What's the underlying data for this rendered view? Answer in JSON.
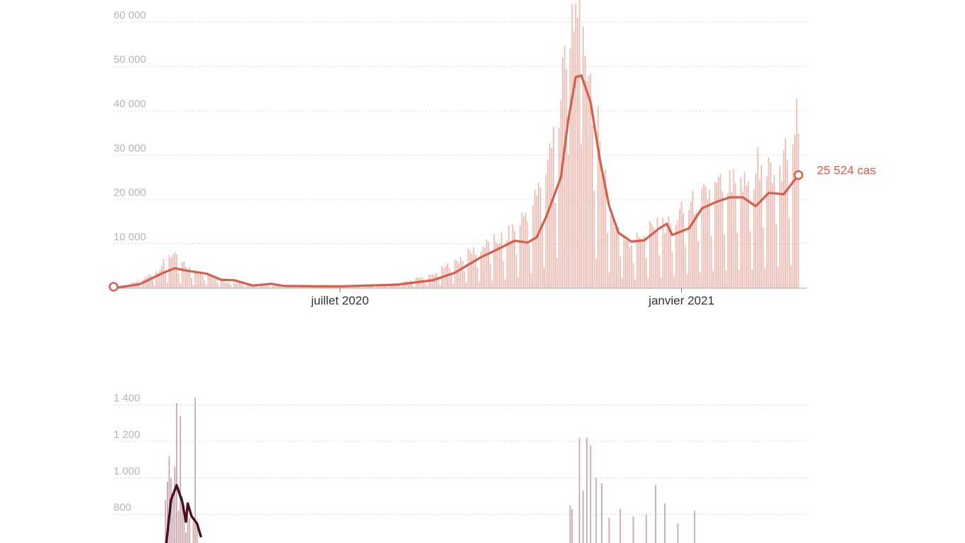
{
  "colors": {
    "cases_bar": "#efbcb3",
    "cases_line": "#d45f4c",
    "deaths_bar": "#c9a8ae",
    "deaths_line": "#4a0f1e",
    "grid": "#d7d7d7",
    "tick_text": "#b5b5b5",
    "axis": "#b8b8b8"
  },
  "chart_data": [
    {
      "type": "bar",
      "title": "",
      "xlabel": "",
      "ylabel": "",
      "start_date": "2020-03-01",
      "end_date": "2021-03-05",
      "ylim": [
        0,
        65000
      ],
      "y_ticks": [
        {
          "value": 10000,
          "label": "10 000"
        },
        {
          "value": 20000,
          "label": "20 000"
        },
        {
          "value": 30000,
          "label": "30 000"
        },
        {
          "value": 40000,
          "label": "40 000"
        },
        {
          "value": 50000,
          "label": "50 000"
        },
        {
          "value": 60000,
          "label": "60 000"
        }
      ],
      "x_ticks": [
        {
          "date": "2020-07-01",
          "label": "juillet 2020"
        },
        {
          "date": "2021-01-01",
          "label": "janvier 2021"
        }
      ],
      "grid": true,
      "daily_anchors": [
        [
          "2020-03-01",
          0
        ],
        [
          "2020-03-15",
          1500
        ],
        [
          "2020-03-25",
          4000
        ],
        [
          "2020-04-01",
          7500
        ],
        [
          "2020-04-10",
          4500
        ],
        [
          "2020-04-20",
          3000
        ],
        [
          "2020-05-01",
          1500
        ],
        [
          "2020-05-15",
          700
        ],
        [
          "2020-06-01",
          500
        ],
        [
          "2020-07-01",
          550
        ],
        [
          "2020-08-01",
          1000
        ],
        [
          "2020-08-20",
          3000
        ],
        [
          "2020-09-10",
          8000
        ],
        [
          "2020-10-01",
          12000
        ],
        [
          "2020-10-15",
          20000
        ],
        [
          "2020-10-25",
          35000
        ],
        [
          "2020-11-01",
          55000
        ],
        [
          "2020-11-07",
          62000
        ],
        [
          "2020-11-15",
          40000
        ],
        [
          "2020-11-25",
          15000
        ],
        [
          "2020-12-05",
          10000
        ],
        [
          "2020-12-15",
          13000
        ],
        [
          "2020-12-25",
          14000
        ],
        [
          "2021-01-05",
          18000
        ],
        [
          "2021-01-20",
          22000
        ],
        [
          "2021-02-05",
          23000
        ],
        [
          "2021-02-20",
          26000
        ],
        [
          "2021-03-05",
          30000
        ]
      ],
      "peaks": [
        [
          "2020-10-29",
          52000
        ],
        [
          "2020-10-31",
          49400
        ],
        [
          "2020-11-02",
          54000
        ],
        [
          "2020-11-04",
          58000
        ],
        [
          "2020-11-06",
          61000
        ],
        [
          "2020-11-07",
          86000
        ],
        [
          "2020-11-09",
          59000
        ],
        [
          "2020-11-12",
          48000
        ],
        [
          "2020-03-31",
          7500
        ],
        [
          "2021-03-04",
          42700
        ],
        [
          "2021-02-26",
          33800
        ],
        [
          "2021-02-11",
          31800
        ]
      ],
      "average_series": {
        "name": "",
        "points": [
          [
            "2020-03-01",
            0
          ],
          [
            "2020-03-15",
            900
          ],
          [
            "2020-03-28",
            3500
          ],
          [
            "2020-04-03",
            4500
          ],
          [
            "2020-04-10",
            3900
          ],
          [
            "2020-04-20",
            3300
          ],
          [
            "2020-04-28",
            1900
          ],
          [
            "2020-05-05",
            1800
          ],
          [
            "2020-05-15",
            600
          ],
          [
            "2020-05-25",
            1000
          ],
          [
            "2020-06-01",
            500
          ],
          [
            "2020-07-01",
            400
          ],
          [
            "2020-08-01",
            800
          ],
          [
            "2020-08-20",
            1800
          ],
          [
            "2020-09-01",
            3500
          ],
          [
            "2020-09-15",
            7000
          ],
          [
            "2020-09-25",
            9000
          ],
          [
            "2020-10-03",
            10700
          ],
          [
            "2020-10-10",
            10300
          ],
          [
            "2020-10-15",
            11500
          ],
          [
            "2020-10-20",
            16000
          ],
          [
            "2020-10-28",
            25000
          ],
          [
            "2020-11-01",
            38000
          ],
          [
            "2020-11-05",
            47600
          ],
          [
            "2020-11-08",
            48000
          ],
          [
            "2020-11-13",
            42000
          ],
          [
            "2020-11-18",
            29000
          ],
          [
            "2020-11-23",
            18500
          ],
          [
            "2020-11-28",
            12500
          ],
          [
            "2020-12-05",
            10500
          ],
          [
            "2020-12-12",
            10800
          ],
          [
            "2020-12-20",
            13500
          ],
          [
            "2020-12-24",
            14500
          ],
          [
            "2020-12-27",
            12000
          ],
          [
            "2021-01-05",
            13500
          ],
          [
            "2021-01-12",
            18000
          ],
          [
            "2021-01-20",
            19500
          ],
          [
            "2021-01-27",
            20500
          ],
          [
            "2021-02-03",
            20500
          ],
          [
            "2021-02-10",
            18500
          ],
          [
            "2021-02-17",
            21500
          ],
          [
            "2021-02-25",
            21200
          ],
          [
            "2021-03-05",
            25524
          ]
        ]
      },
      "start_marker": true,
      "end_label": "25 524 cas"
    },
    {
      "type": "bar",
      "title": "",
      "xlabel": "",
      "ylabel": "",
      "start_date": "2020-03-01",
      "end_date": "2021-03-05",
      "ylim": [
        0,
        1500
      ],
      "y_ticks": [
        {
          "value": 800,
          "label": "800"
        },
        {
          "value": 1000,
          "label": "1 000"
        },
        {
          "value": 1200,
          "label": "1 200"
        },
        {
          "value": 1400,
          "label": "1 400"
        }
      ],
      "grid": true,
      "visible_bars": [
        [
          "2020-03-29",
          880
        ],
        [
          "2020-03-30",
          980
        ],
        [
          "2020-03-31",
          1120
        ],
        [
          "2020-04-01",
          1000
        ],
        [
          "2020-04-02",
          900
        ],
        [
          "2020-04-03",
          1060
        ],
        [
          "2020-04-04",
          1410
        ],
        [
          "2020-04-05",
          820
        ],
        [
          "2020-04-06",
          1340
        ],
        [
          "2020-04-07",
          900
        ],
        [
          "2020-04-08",
          850
        ],
        [
          "2020-04-09",
          700
        ],
        [
          "2020-04-10",
          790
        ],
        [
          "2020-04-11",
          780
        ],
        [
          "2020-04-12",
          640
        ],
        [
          "2020-04-13",
          760
        ],
        [
          "2020-04-14",
          1440
        ],
        [
          "2020-04-15",
          750
        ],
        [
          "2020-04-16",
          620
        ],
        [
          "2020-11-02",
          850
        ],
        [
          "2020-11-03",
          830
        ],
        [
          "2020-11-07",
          1220
        ],
        [
          "2020-11-09",
          930
        ],
        [
          "2020-11-11",
          1220
        ],
        [
          "2020-11-13",
          1180
        ],
        [
          "2020-11-16",
          1000
        ],
        [
          "2020-11-19",
          970
        ],
        [
          "2020-11-23",
          780
        ],
        [
          "2020-11-29",
          830
        ],
        [
          "2020-12-06",
          790
        ],
        [
          "2020-12-13",
          800
        ],
        [
          "2020-12-18",
          960
        ],
        [
          "2020-12-23",
          860
        ],
        [
          "2020-12-30",
          750
        ],
        [
          "2021-01-08",
          820
        ]
      ],
      "average_series": {
        "name": "",
        "points": [
          [
            "2020-03-29",
            600
          ],
          [
            "2020-04-01",
            880
          ],
          [
            "2020-04-04",
            960
          ],
          [
            "2020-04-07",
            870
          ],
          [
            "2020-04-09",
            760
          ],
          [
            "2020-04-10",
            860
          ],
          [
            "2020-04-12",
            790
          ],
          [
            "2020-04-15",
            750
          ],
          [
            "2020-04-17",
            680
          ]
        ]
      }
    }
  ]
}
